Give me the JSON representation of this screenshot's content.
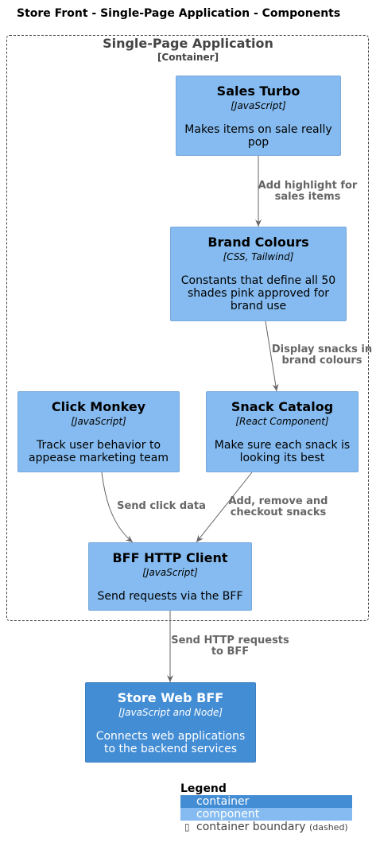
{
  "title": "Store Front - Single-Page Application - Components",
  "boundary": {
    "name": "Single-Page Application",
    "tech": "[Container]"
  },
  "nodes": {
    "sales_turbo": {
      "name": "Sales Turbo",
      "tech": "[JavaScript]",
      "desc": "Makes items on sale really pop"
    },
    "brand_colours": {
      "name": "Brand Colours",
      "tech": "[CSS, Tailwind]",
      "desc": "Constants that define all 50 shades pink approved for brand use"
    },
    "click_monkey": {
      "name": "Click Monkey",
      "tech": "[JavaScript]",
      "desc": "Track user behavior to appease marketing team"
    },
    "snack_catalog": {
      "name": "Snack Catalog",
      "tech": "[React Component]",
      "desc": "Make sure each snack is looking its best"
    },
    "bff_client": {
      "name": "BFF HTTP Client",
      "tech": "[JavaScript]",
      "desc": "Send requests via the BFF"
    },
    "store_bff": {
      "name": "Store Web BFF",
      "tech": "[JavaScript and Node]",
      "desc": "Connects web applications to the backend services"
    }
  },
  "edges": {
    "highlight": "Add highlight for\nsales items",
    "display": "Display snacks in\nbrand colours",
    "click": "Send click data",
    "cart": "Add, remove and\ncheckout snacks",
    "http": "Send HTTP requests\nto BFF"
  },
  "legend": {
    "title": "Legend",
    "container": "container",
    "component": "component",
    "boundary": "container boundary",
    "boundary_note": "(dashed)",
    "container_icon": "▯"
  },
  "colors": {
    "component": "#85bbf0",
    "container": "#438dd5",
    "edge": "#666666",
    "boundary": "#444444"
  }
}
